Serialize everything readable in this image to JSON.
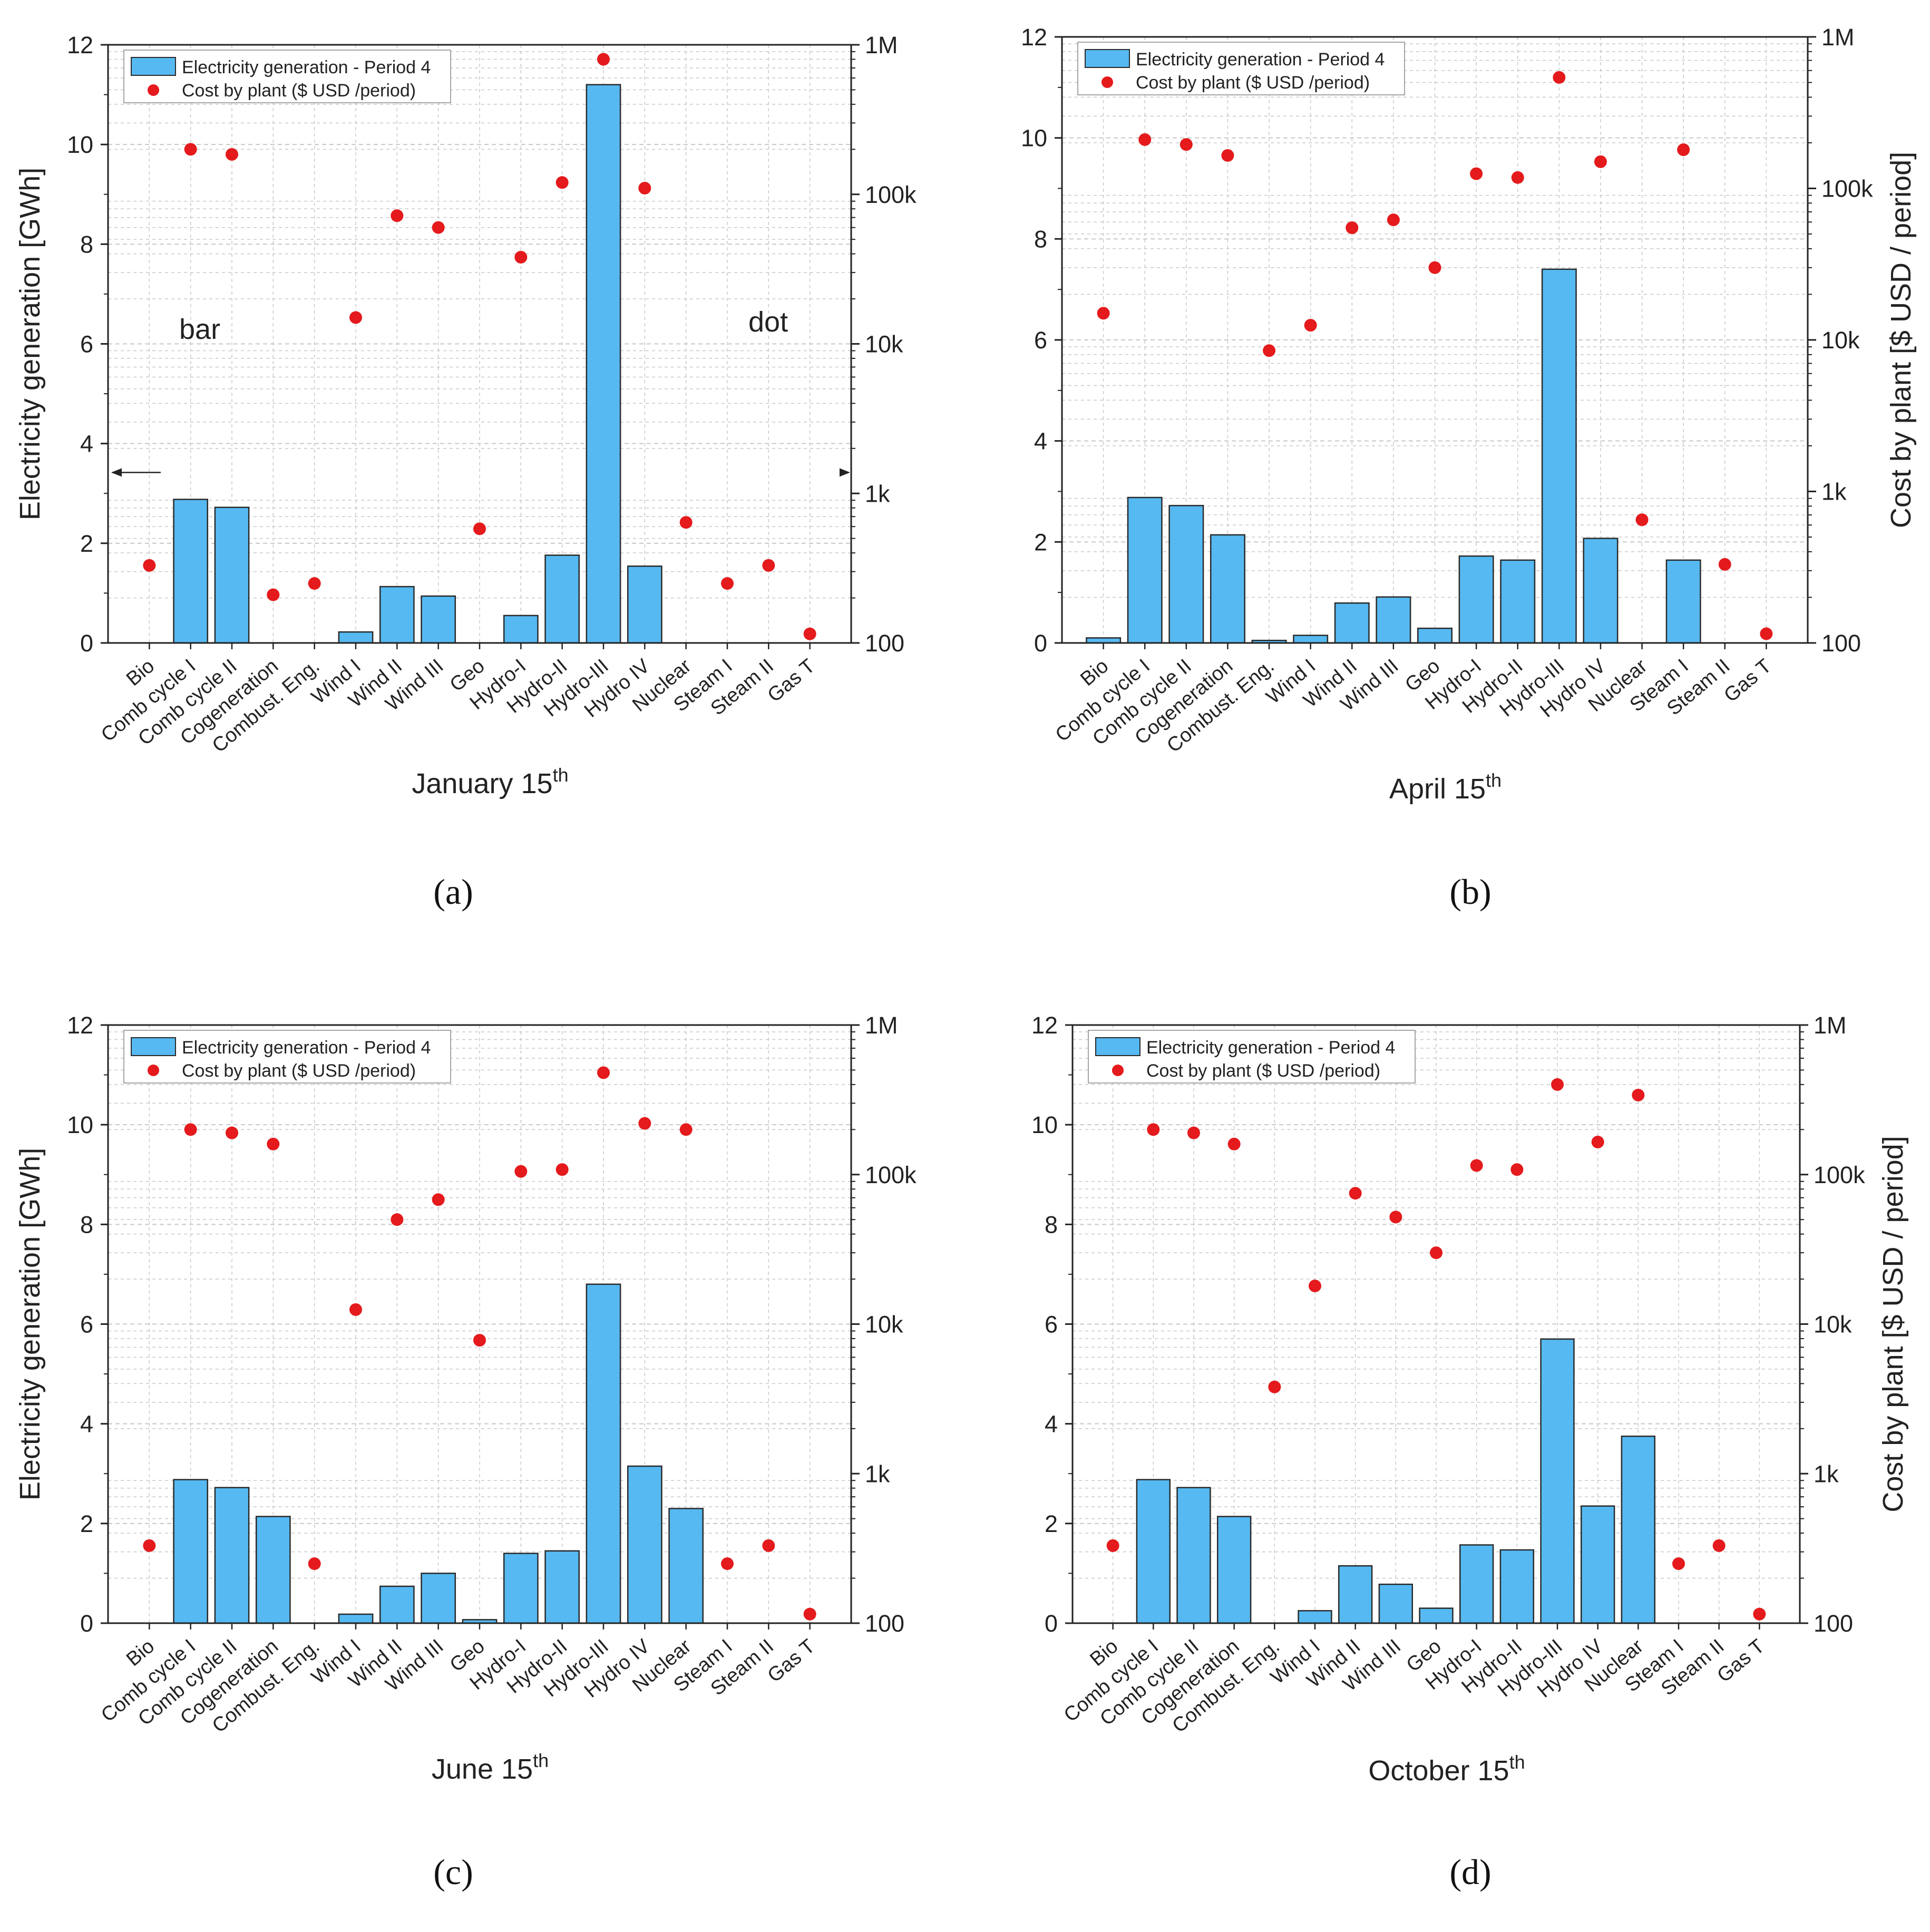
{
  "colors": {
    "bar": "#56b9f1",
    "bar_edge": "#2a2a2a",
    "dot": "#e41a1c",
    "grid": "#c8c8c8",
    "axis": "#222222"
  },
  "categories": [
    "Bio",
    "Comb cycle I",
    "Comb cycle II",
    "Cogeneration",
    "Combust. Eng.",
    "Wind I",
    "Wind II",
    "Wind III",
    "Geo",
    "Hydro-I",
    "Hydro-II",
    "Hydro-III",
    "Hydro IV",
    "Nuclear",
    "Steam I",
    "Steam II",
    "Gas T"
  ],
  "legend": {
    "bar": "Electricity generation - Period 4",
    "dot": "Cost by plant ($ USD /period)"
  },
  "left_axis": {
    "title": "Electricity generation [GWh]",
    "ticks": [
      "0",
      "2",
      "4",
      "6",
      "8",
      "10",
      "12"
    ],
    "range": [
      0,
      12
    ]
  },
  "right_axis": {
    "title": "Cost by plant  [$ USD / period]",
    "ticks": [
      "100",
      "1k",
      "10k",
      "100k",
      "1M"
    ],
    "range": [
      100,
      1000000
    ],
    "scale": "log"
  },
  "chart_data": [
    {
      "type": "bar+scatter",
      "caption": "(a)",
      "xlabel_main": "January 15",
      "xlabel_sup": "th",
      "notes": {
        "left": "bar",
        "right": "dot"
      },
      "series": [
        {
          "name": "Electricity generation - Period 4",
          "axis": "left",
          "values": [
            null,
            2.88,
            2.72,
            null,
            null,
            0.22,
            1.13,
            0.94,
            null,
            0.55,
            1.76,
            11.2,
            1.54,
            null,
            null,
            null,
            null
          ]
        },
        {
          "name": "Cost by plant ($ USD /period)",
          "axis": "right",
          "values": [
            330,
            200000,
            185000,
            210,
            250,
            15000,
            72000,
            60000,
            580,
            38000,
            120000,
            800000,
            110000,
            640,
            250,
            330,
            115
          ]
        }
      ]
    },
    {
      "type": "bar+scatter",
      "caption": "(b)",
      "xlabel_main": "April 15",
      "xlabel_sup": "th",
      "series": [
        {
          "name": "Electricity generation - Period 4",
          "axis": "left",
          "values": [
            0.1,
            2.88,
            2.72,
            2.14,
            0.05,
            0.15,
            0.79,
            0.91,
            0.29,
            1.72,
            1.64,
            7.4,
            2.07,
            null,
            1.64,
            null,
            null
          ]
        },
        {
          "name": "Cost by plant ($ USD /period)",
          "axis": "right",
          "values": [
            15000,
            210000,
            195000,
            165000,
            8500,
            12500,
            55000,
            62000,
            30000,
            125000,
            118000,
            540000,
            150000,
            650,
            180000,
            330,
            115
          ]
        }
      ]
    },
    {
      "type": "bar+scatter",
      "caption": "(c)",
      "xlabel_main": "June 15",
      "xlabel_sup": "th",
      "series": [
        {
          "name": "Electricity generation - Period 4",
          "axis": "left",
          "values": [
            null,
            2.88,
            2.72,
            2.14,
            null,
            0.18,
            0.74,
            1.0,
            0.07,
            1.4,
            1.45,
            6.8,
            3.15,
            2.3,
            null,
            null,
            null
          ]
        },
        {
          "name": "Cost by plant ($ USD /period)",
          "axis": "right",
          "values": [
            330,
            200000,
            190000,
            160000,
            250,
            12500,
            50000,
            68000,
            7800,
            105000,
            108000,
            480000,
            220000,
            200000,
            250,
            330,
            115
          ]
        }
      ]
    },
    {
      "type": "bar+scatter",
      "caption": "(d)",
      "xlabel_main": "October 15",
      "xlabel_sup": "th",
      "series": [
        {
          "name": "Electricity generation - Period 4",
          "axis": "left",
          "values": [
            null,
            2.88,
            2.72,
            2.14,
            null,
            0.25,
            1.15,
            0.78,
            0.3,
            1.57,
            1.47,
            5.7,
            2.35,
            3.75,
            null,
            null,
            null
          ]
        },
        {
          "name": "Cost by plant ($ USD /period)",
          "axis": "right",
          "values": [
            330,
            200000,
            190000,
            160000,
            3800,
            18000,
            75000,
            52000,
            30000,
            115000,
            108000,
            400000,
            165000,
            340000,
            250,
            330,
            115
          ]
        }
      ]
    }
  ]
}
